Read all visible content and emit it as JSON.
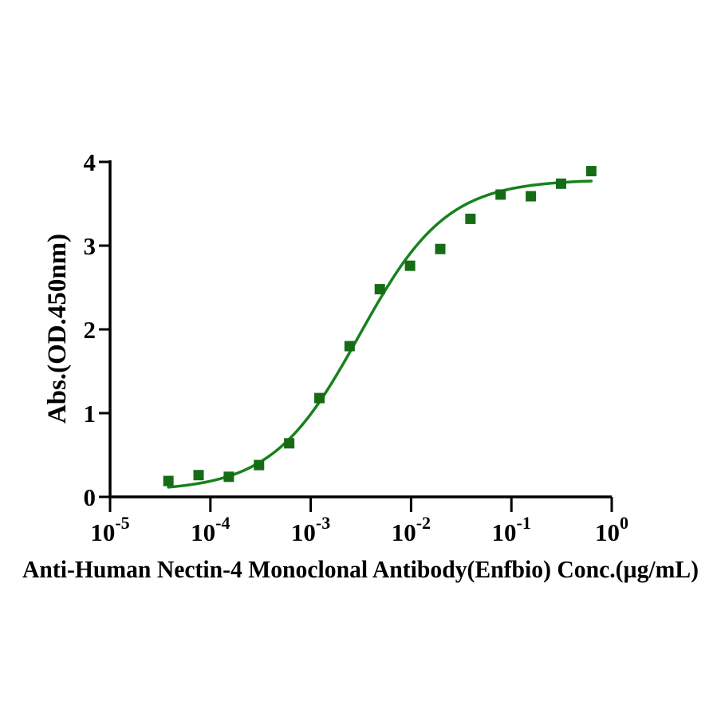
{
  "figure": {
    "background": "#ffffff",
    "axis_color": "#000000",
    "text_color": "#000000"
  },
  "chart_data": {
    "type": "scatter",
    "title": "",
    "xlabel": "Anti-Human Nectin-4 Monoclonal Antibody(Enfbio) Conc.(µg/mL)",
    "ylabel": "Abs.(OD.450nm)",
    "x_scale": "log10",
    "xlim_log": [
      -5,
      0
    ],
    "ylim": [
      0,
      4
    ],
    "x_tick_mantissa": "10",
    "x_tick_exponents": [
      "-5",
      "-4",
      "-3",
      "-2",
      "-1",
      "0"
    ],
    "y_ticks": [
      0,
      1,
      2,
      3,
      4
    ],
    "grid": false,
    "legend": "none",
    "x_conc_ug_ml": [
      3.815e-05,
      7.629e-05,
      0.0001526,
      0.0003052,
      0.0006104,
      0.001221,
      0.002441,
      0.004883,
      0.009766,
      0.01953,
      0.03906,
      0.07813,
      0.1563,
      0.3125,
      0.625
    ],
    "y_od450": [
      0.19,
      0.26,
      0.24,
      0.38,
      0.64,
      1.18,
      1.8,
      2.48,
      2.76,
      2.96,
      3.32,
      3.61,
      3.59,
      3.74,
      3.89
    ],
    "fit": {
      "model": "4PL",
      "bottom": 0.07,
      "top": 3.79,
      "ec50": 0.00305,
      "hill": 1.0
    },
    "marker": {
      "shape": "square",
      "size": 13,
      "color": "#166c16"
    },
    "curve": {
      "color": "#17821c",
      "width": 3.5
    }
  }
}
